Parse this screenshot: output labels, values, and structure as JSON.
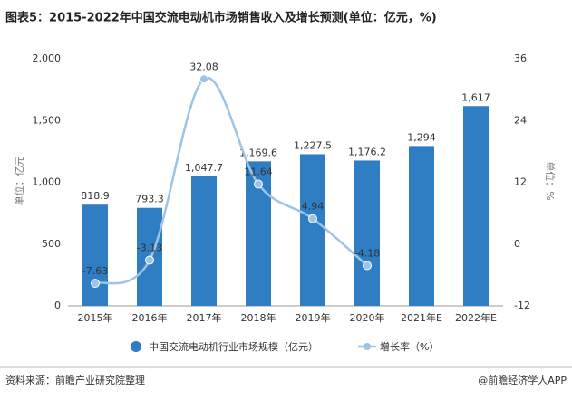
{
  "chart_data": {
    "type": "bar",
    "title": "图表5：2015-2022年中国交流电动机市场销售收入及增长预测(单位：亿元，%)",
    "ylabel": "单位：亿元",
    "y2label": "单位：%",
    "categories": [
      "2015年",
      "2016年",
      "2017年",
      "2018年",
      "2019年",
      "2020年",
      "2021年E",
      "2022年E"
    ],
    "series": [
      {
        "name": "中国交流电动机行业市场规模（亿元）",
        "type": "bar",
        "color": "#2f7ec3",
        "axis": "y",
        "values": [
          818.9,
          793.3,
          1047.7,
          1169.6,
          1227.5,
          1176.2,
          1294,
          1617
        ],
        "value_labels": [
          "818.9",
          "793.3",
          "1,047.7",
          "1,169.6",
          "1,227.5",
          "1,176.2",
          "1,294",
          "1,617"
        ]
      },
      {
        "name": "增长率（%）",
        "type": "line",
        "color": "#9dc3e6",
        "axis": "y2",
        "values": [
          -7.63,
          -3.13,
          32.08,
          11.64,
          4.94,
          -4.18,
          null,
          null
        ]
      }
    ],
    "ylim": [
      0,
      2000
    ],
    "yticks": [
      0,
      500,
      {
        "value": 1000,
        "label": "1,000"
      },
      {
        "value": 1500,
        "label": "1,500"
      },
      {
        "value": 2000,
        "label": "2,000"
      }
    ],
    "y2lim": [
      -12,
      36
    ],
    "y2ticks": [
      -12,
      0,
      12,
      24,
      36
    ],
    "legend": "bottom",
    "source": "资料来源：前瞻产业研究院整理",
    "brand": "@前瞻经济学人APP"
  }
}
